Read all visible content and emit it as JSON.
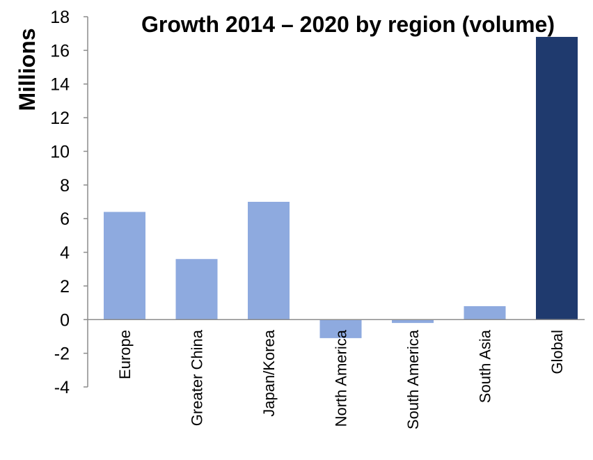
{
  "chart_data": {
    "type": "bar",
    "title": "Growth 2014 – 2020 by region (volume)",
    "xlabel": "",
    "ylabel": "Millions",
    "ylim": [
      -4,
      18
    ],
    "yticks": [
      -4,
      -2,
      0,
      2,
      4,
      6,
      8,
      10,
      12,
      14,
      16,
      18
    ],
    "categories": [
      "Europe",
      "Greater China",
      "Japan/Korea",
      "North America",
      "South America",
      "South Asia",
      "Global"
    ],
    "values": [
      6.4,
      3.6,
      7.0,
      -1.1,
      -0.2,
      0.8,
      16.8
    ],
    "colors": [
      "#8eaadf",
      "#8eaadf",
      "#8eaadf",
      "#8eaadf",
      "#8eaadf",
      "#8eaadf",
      "#1f3a6e"
    ],
    "grid": false,
    "legend": "none"
  }
}
